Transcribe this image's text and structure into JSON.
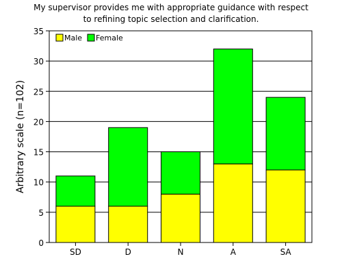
{
  "chart_data": {
    "type": "bar",
    "stacked": true,
    "title": [
      "My supervisor provides me with appropriate guidance with respect",
      "to refining topic selection and clarification."
    ],
    "xlabel": "",
    "ylabel": "Arbitrary scale (n=102)",
    "categories": [
      "SD",
      "D",
      "N",
      "A",
      "SA"
    ],
    "series": [
      {
        "name": "Male",
        "values": [
          6,
          6,
          8,
          13,
          12
        ],
        "color": "#ffff00"
      },
      {
        "name": "Female",
        "values": [
          5,
          13,
          7,
          19,
          12
        ],
        "color": "#00ff00"
      }
    ],
    "ylim": [
      0,
      35
    ],
    "yticks": [
      0,
      5,
      10,
      15,
      20,
      25,
      30,
      35
    ],
    "grid": true,
    "legend_position": "top-left"
  }
}
